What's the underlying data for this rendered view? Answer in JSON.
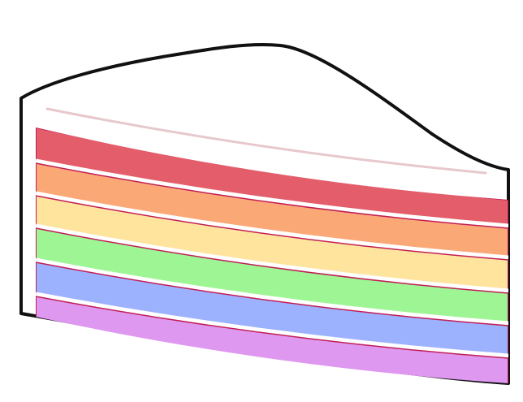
{
  "illustration": {
    "subject": "rainbow-layer-cake-slice-icon",
    "colors": {
      "outline": "#111111",
      "frosting": "#ffffff",
      "frosting_highlight": "#e7c8cc",
      "layer_separator": "#c21d55",
      "layer_gap": "#ffffff"
    },
    "layers": [
      {
        "name": "red-layer",
        "color": "#e35d6a"
      },
      {
        "name": "orange-layer",
        "color": "#fba877"
      },
      {
        "name": "yellow-layer",
        "color": "#ffe49e"
      },
      {
        "name": "green-layer",
        "color": "#9ef594"
      },
      {
        "name": "blue-layer",
        "color": "#9db2ff"
      },
      {
        "name": "purple-layer",
        "color": "#de98ef"
      }
    ]
  }
}
